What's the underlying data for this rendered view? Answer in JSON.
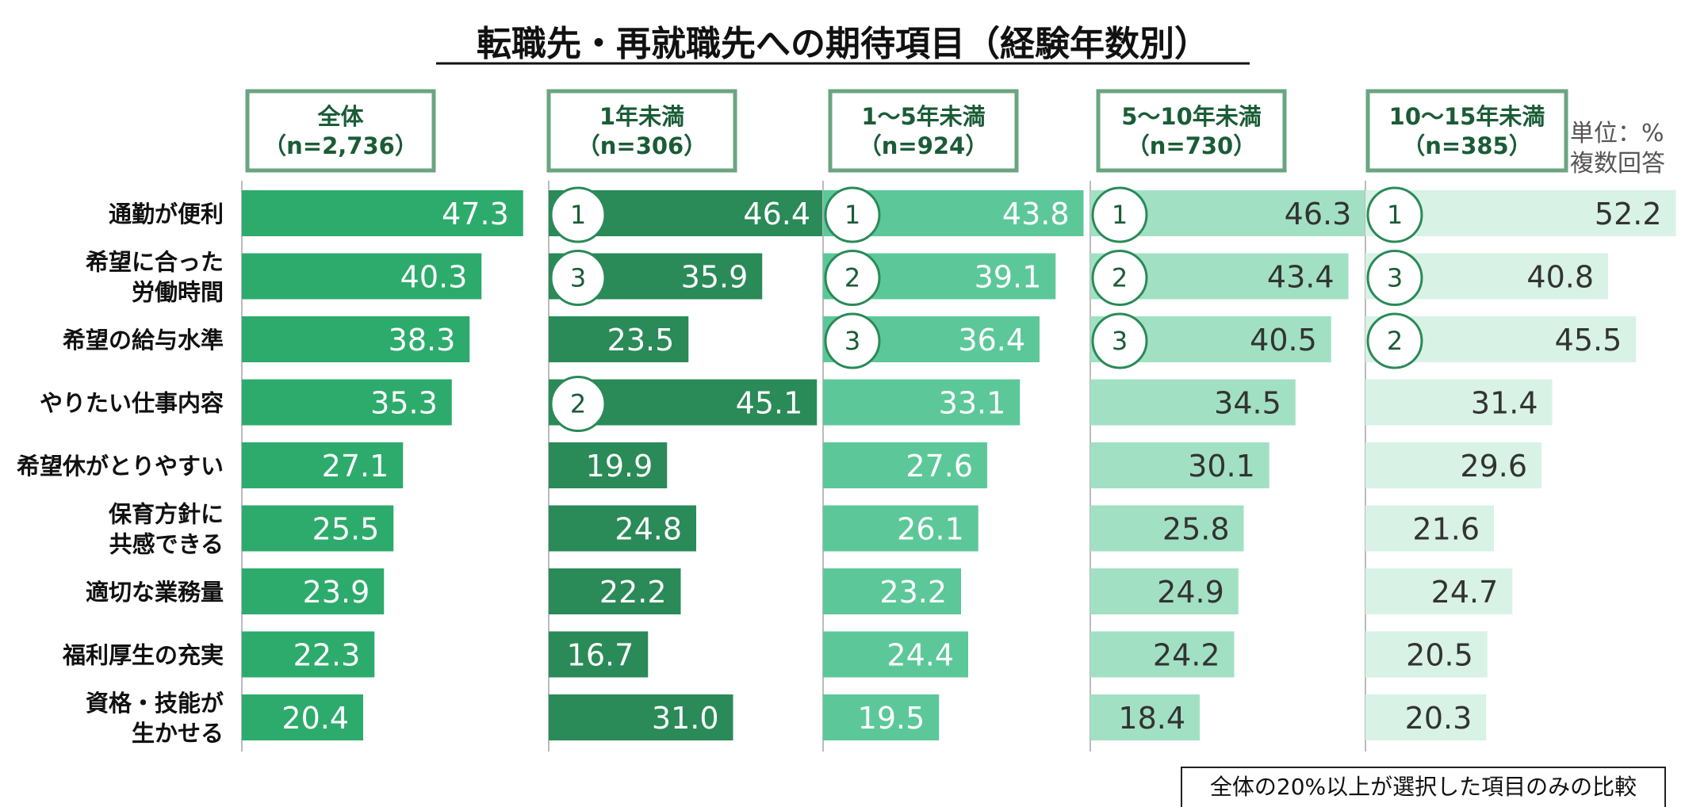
{
  "chart_data": {
    "type": "bar",
    "title": "転職先・再就職先への期待項目（経験年数別）",
    "unit_note": [
      "単位：%",
      "複数回答"
    ],
    "footnote": "全体の20%以上が選択した項目のみの比較",
    "categories": [
      "通勤が便利",
      "希望に合った\n労働時間",
      "希望の給与水準",
      "やりたい仕事内容",
      "希望休がとりやすい",
      "保育方針に\n共感できる",
      "適切な業務量",
      "福利厚生の充実",
      "資格・技能が\n生かせる"
    ],
    "series": [
      {
        "name": "全体",
        "n_label": "（n=2,736）",
        "color": "#2dab6c",
        "label_color": "#ffffff",
        "values": [
          47.3,
          40.3,
          38.3,
          35.3,
          27.1,
          25.5,
          23.9,
          22.3,
          20.4
        ],
        "ranks": [
          null,
          null,
          null,
          null,
          null,
          null,
          null,
          null,
          null
        ]
      },
      {
        "name": "1年未満",
        "n_label": "（n=306）",
        "color": "#2a8a58",
        "label_color": "#ffffff",
        "values": [
          46.4,
          35.9,
          23.5,
          45.1,
          19.9,
          24.8,
          22.2,
          16.7,
          31.0
        ],
        "ranks": [
          "1",
          "3",
          null,
          "2",
          null,
          null,
          null,
          null,
          null
        ]
      },
      {
        "name": "1～5年未満",
        "n_label": "（n=924）",
        "color": "#5cc89a",
        "label_color": "#ffffff",
        "values": [
          43.8,
          39.1,
          36.4,
          33.1,
          27.6,
          26.1,
          23.2,
          24.4,
          19.5
        ],
        "ranks": [
          "1",
          "2",
          "3",
          null,
          null,
          null,
          null,
          null,
          null
        ]
      },
      {
        "name": "5～10年未満",
        "n_label": "（n=730）",
        "color": "#a2e0c4",
        "label_color": "#333333",
        "values": [
          46.3,
          43.4,
          40.5,
          34.5,
          30.1,
          25.8,
          24.9,
          24.2,
          18.4
        ],
        "ranks": [
          "1",
          "2",
          "3",
          null,
          null,
          null,
          null,
          null,
          null
        ]
      },
      {
        "name": "10～15年未満",
        "n_label": "（n=385）",
        "color": "#d8f2e6",
        "label_color": "#333333",
        "values": [
          52.2,
          40.8,
          45.5,
          31.4,
          29.6,
          21.6,
          24.7,
          20.5,
          20.3
        ],
        "ranks": [
          "1",
          "3",
          "2",
          null,
          null,
          null,
          null,
          null,
          null
        ]
      }
    ],
    "xlim": [
      0,
      60
    ]
  }
}
